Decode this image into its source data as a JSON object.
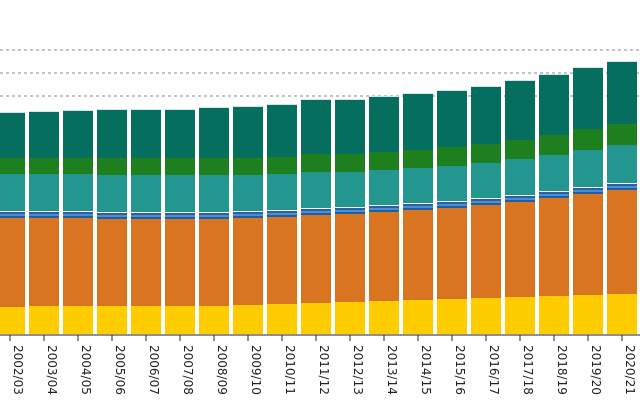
{
  "chart_data": {
    "type": "bar",
    "stacked": true,
    "categories": [
      "2002/03",
      "2003/04",
      "2004/05",
      "2005/06",
      "2006/07",
      "2007/08",
      "2008/09",
      "2009/10",
      "2010/11",
      "2011/12",
      "2012/13",
      "2013/14",
      "2014/15",
      "2015/16",
      "2016/17",
      "2017/18",
      "2018/19",
      "2019/20",
      "2020/21"
    ],
    "series": [
      {
        "color": "#FFCC00",
        "values": [
          27,
          28,
          28,
          28,
          28,
          28,
          28,
          29,
          30,
          31,
          32,
          33,
          34,
          35,
          36,
          37,
          38,
          39,
          40
        ]
      },
      {
        "color": "#D97520",
        "values": [
          89,
          88,
          88,
          87,
          87,
          87,
          87,
          87,
          87,
          88,
          88,
          89,
          90,
          91,
          93,
          95,
          98,
          101,
          104
        ]
      },
      {
        "color": "#1F5FA8",
        "values": [
          2,
          2,
          2,
          2,
          2,
          2,
          2,
          2,
          2,
          2,
          2,
          2,
          2,
          2,
          2,
          2,
          2,
          2,
          2
        ]
      },
      {
        "color": "#4A90D0",
        "values": [
          2,
          2,
          2,
          2,
          2,
          2,
          2,
          2,
          2,
          2,
          2,
          2,
          2,
          2,
          2,
          2,
          2,
          2,
          2
        ]
      },
      {
        "color": "#2E5FA0",
        "values": [
          2,
          2,
          2,
          2,
          2,
          2,
          2,
          2,
          2,
          2,
          2,
          2,
          2,
          2,
          2,
          2,
          2,
          2,
          2
        ]
      },
      {
        "color": "#FFFFFF",
        "values": [
          1,
          1,
          1,
          1,
          1,
          1,
          1,
          1,
          1,
          1,
          1,
          1,
          1,
          1,
          1,
          1,
          1,
          1,
          1
        ]
      },
      {
        "color": "#23968F",
        "values": [
          37,
          37,
          37,
          37,
          37,
          37,
          37,
          36,
          36,
          36,
          35,
          35,
          35,
          35,
          35,
          36,
          36,
          37,
          38
        ]
      },
      {
        "color": "#1E7F1E",
        "values": [
          16,
          16,
          16,
          17,
          17,
          17,
          17,
          17,
          17,
          18,
          18,
          18,
          18,
          19,
          19,
          19,
          20,
          21,
          21
        ]
      },
      {
        "color": "#066E5F",
        "values": [
          45,
          46,
          47,
          48,
          48,
          48,
          50,
          51,
          52,
          54,
          54,
          55,
          56,
          56,
          57,
          59,
          60,
          61,
          62
        ]
      },
      {
        "color": "#CFE8E4",
        "values": [
          1,
          1,
          1,
          1,
          1,
          1,
          1,
          1,
          1,
          1,
          1,
          1,
          1,
          1,
          1,
          1,
          1,
          1,
          1
        ]
      }
    ],
    "gridlines": [
      238,
      261,
      284
    ],
    "ylim": [
      0,
      300
    ],
    "grid": "dashed horizontal",
    "legend": "none"
  }
}
